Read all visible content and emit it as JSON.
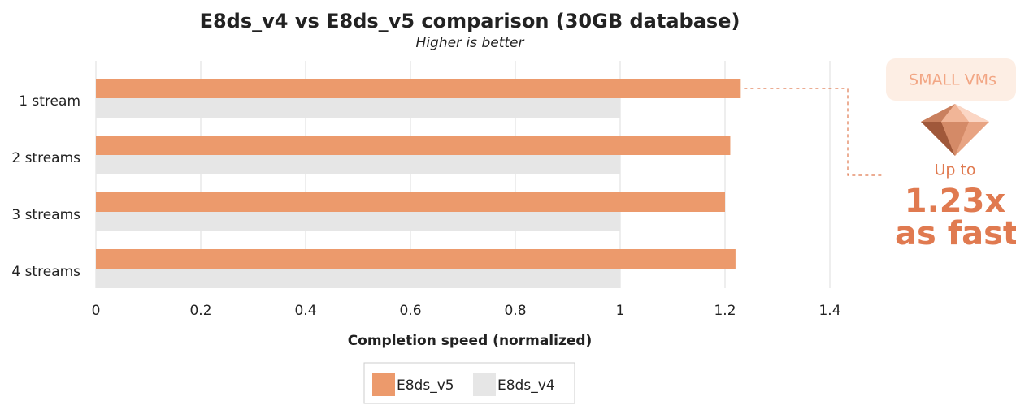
{
  "chart_data": {
    "type": "barh",
    "title": "E8ds_v4 vs E8ds_v5 comparison (30GB database)",
    "subtitle": "Higher is better",
    "x_label": "Completion speed (normalized)",
    "categories": [
      "1 stream",
      "2 streams",
      "3 streams",
      "4 streams"
    ],
    "series": [
      {
        "name": "E8ds_v5",
        "color": "#ec9a6c",
        "values": [
          1.23,
          1.21,
          1.2,
          1.22
        ]
      },
      {
        "name": "E8ds_v4",
        "color": "#e6e6e6",
        "values": [
          1,
          1,
          1,
          1
        ]
      }
    ],
    "xlim": [
      0,
      1.4
    ],
    "xticks": [
      0,
      0.2,
      0.4,
      0.6,
      0.8,
      1,
      1.2,
      1.4
    ],
    "grid": true,
    "legend": "bottom",
    "annotation": {
      "badge": "SMALL VMs",
      "prefix": "Up to",
      "headline": "1.23x",
      "suffix": "as fast"
    }
  }
}
